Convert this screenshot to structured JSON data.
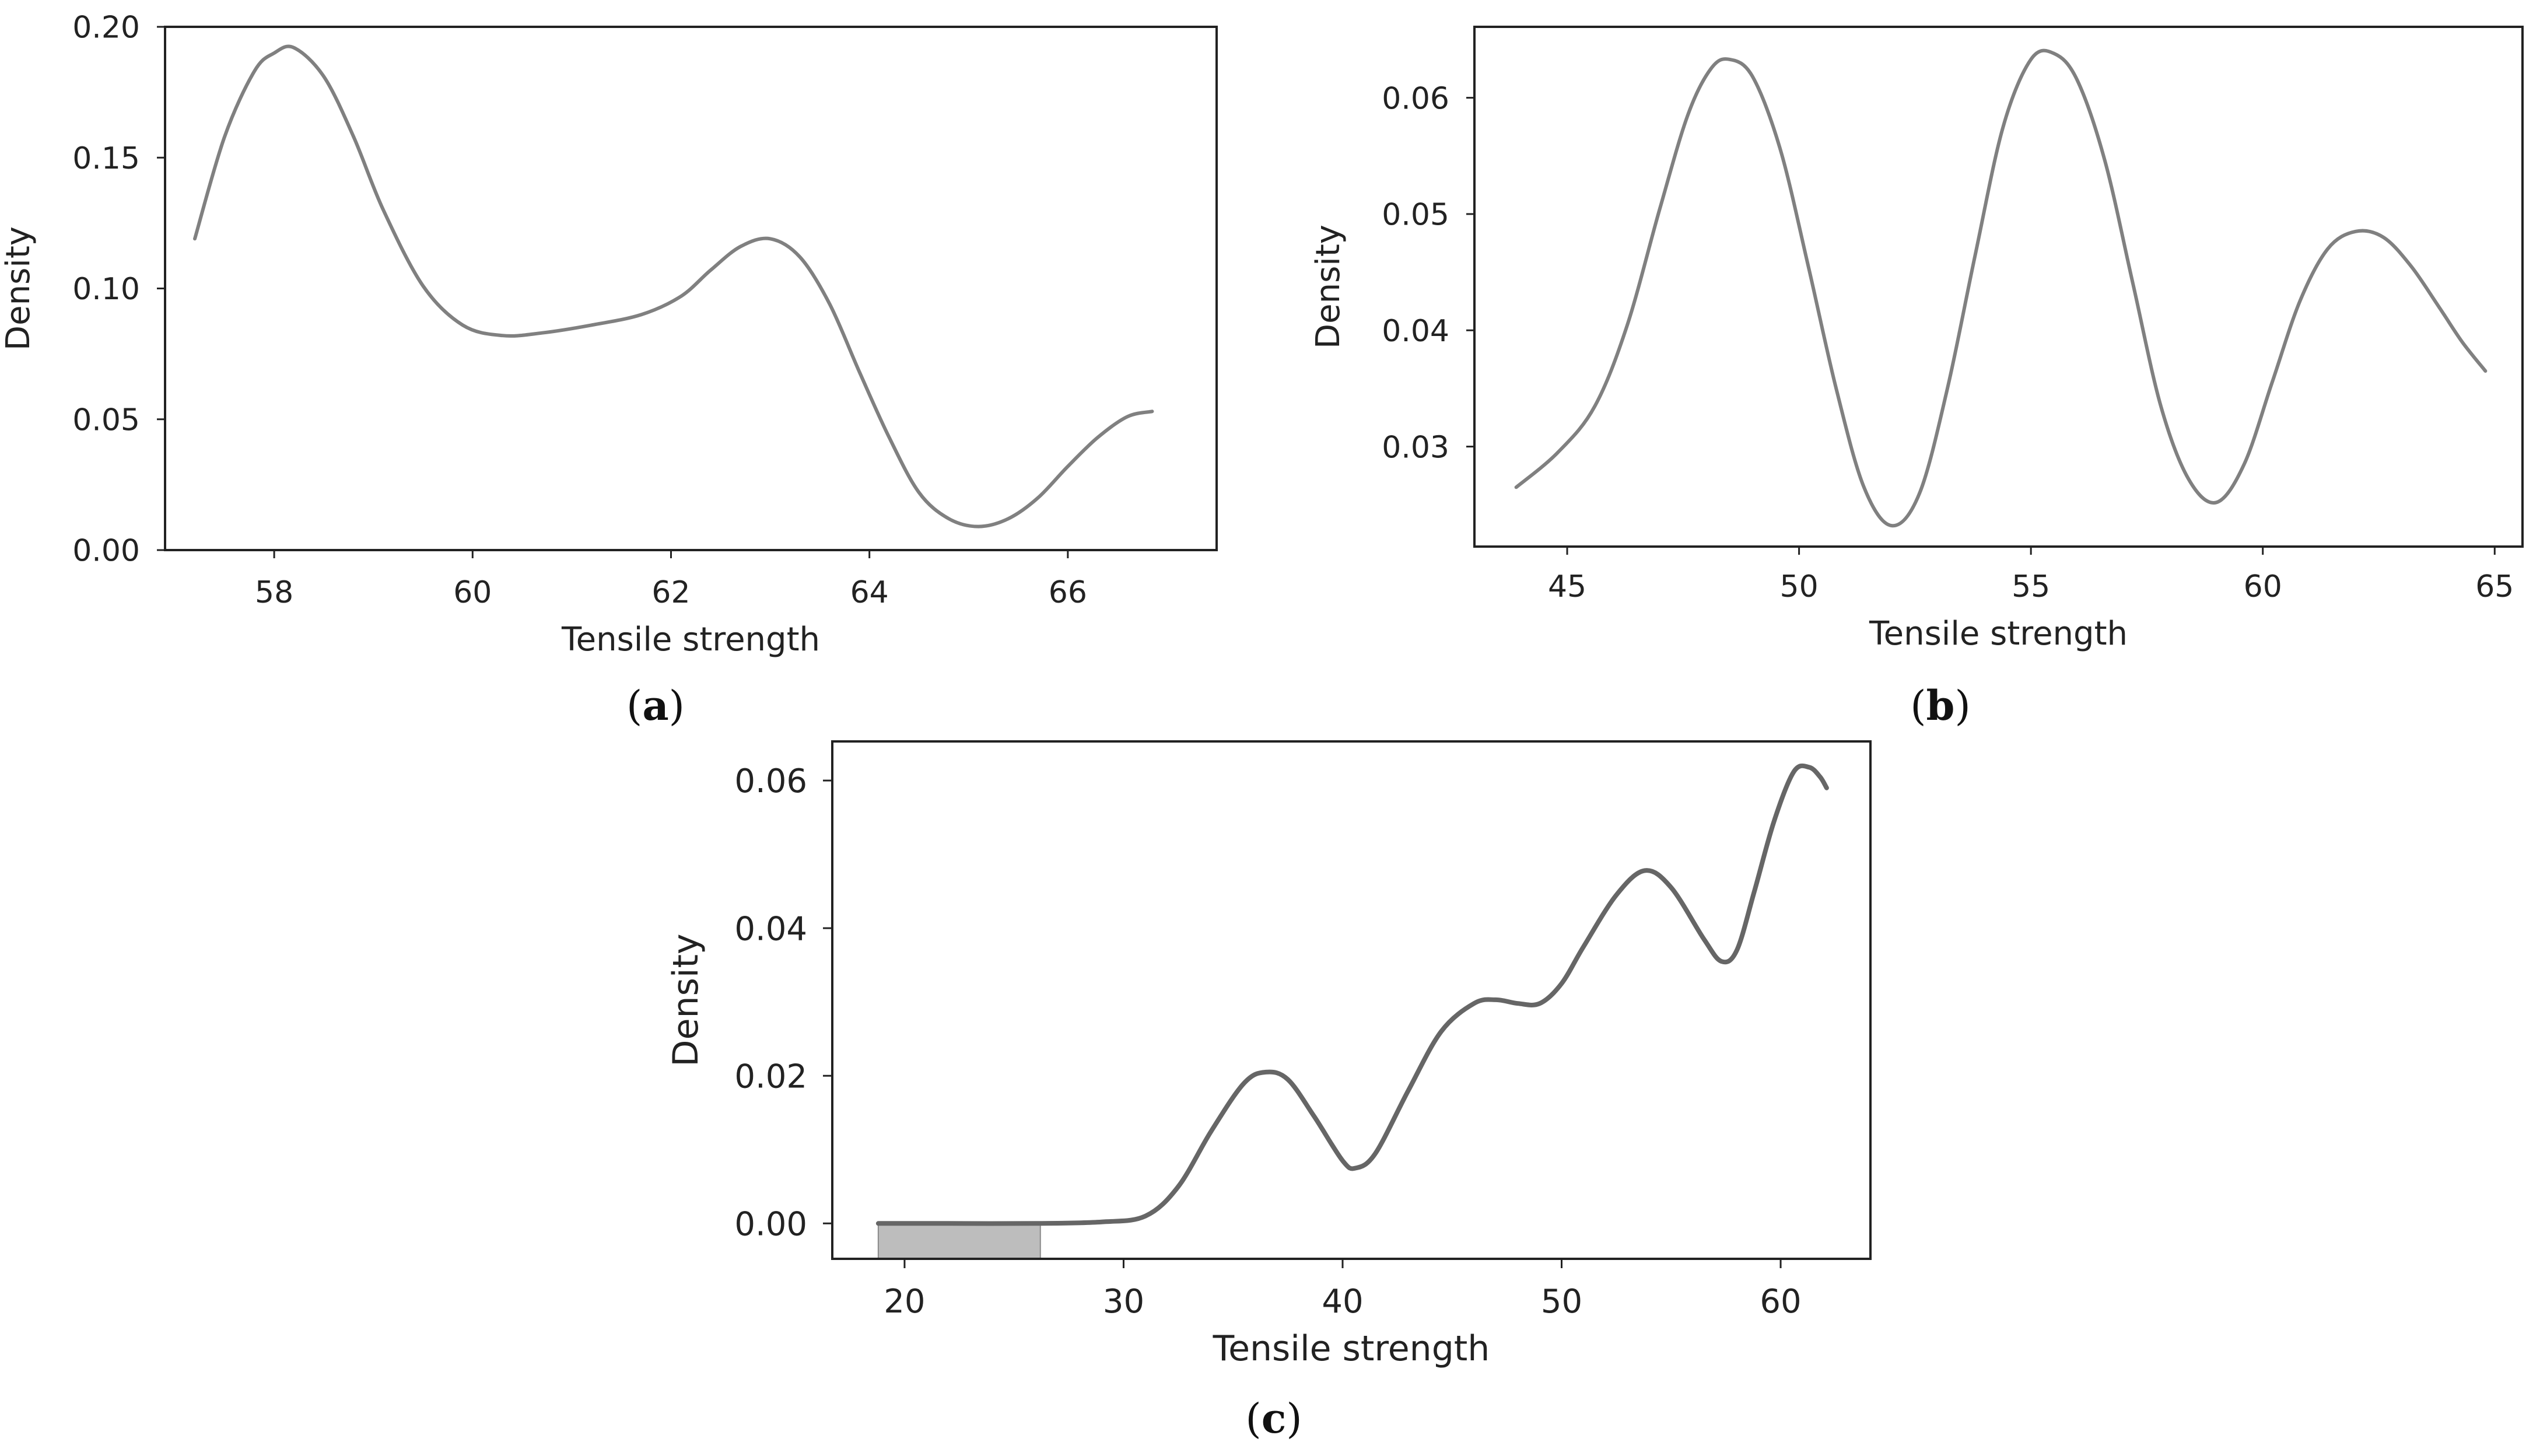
{
  "figure": {
    "captions": {
      "a": {
        "open": "(",
        "letter": "a",
        "close": ")"
      },
      "b": {
        "open": "(",
        "letter": "b",
        "close": ")"
      },
      "c": {
        "open": "(",
        "letter": "c",
        "close": ")"
      }
    }
  },
  "chart_data": [
    {
      "id": "a",
      "type": "line",
      "title": "",
      "xlabel": "Tensile strength",
      "ylabel": "Density",
      "xlim": [
        56.9,
        67.5
      ],
      "ylim": [
        0.0,
        0.2
      ],
      "xticks": [
        58,
        60,
        62,
        64,
        66
      ],
      "xtick_labels": [
        "58",
        "60",
        "62",
        "64",
        "66"
      ],
      "yticks": [
        0.0,
        0.05,
        0.1,
        0.15,
        0.2
      ],
      "ytick_labels": [
        "0.00",
        "0.05",
        "0.10",
        "0.15",
        "0.20"
      ],
      "grid": false,
      "line_color": "#808080",
      "series": [
        {
          "name": "density",
          "x": [
            57.2,
            57.5,
            57.8,
            58.0,
            58.2,
            58.5,
            58.8,
            59.1,
            59.5,
            59.9,
            60.3,
            60.7,
            61.2,
            61.7,
            62.1,
            62.4,
            62.7,
            63.0,
            63.3,
            63.6,
            63.9,
            64.2,
            64.5,
            64.8,
            65.1,
            65.4,
            65.7,
            66.0,
            66.3,
            66.6,
            66.85
          ],
          "y": [
            0.119,
            0.158,
            0.183,
            0.19,
            0.192,
            0.181,
            0.158,
            0.13,
            0.101,
            0.086,
            0.082,
            0.083,
            0.086,
            0.09,
            0.097,
            0.107,
            0.116,
            0.119,
            0.112,
            0.094,
            0.068,
            0.043,
            0.022,
            0.012,
            0.009,
            0.012,
            0.02,
            0.032,
            0.043,
            0.051,
            0.053
          ]
        }
      ]
    },
    {
      "id": "b",
      "type": "line",
      "title": "",
      "xlabel": "Tensile strength",
      "ylabel": "Density",
      "xlim": [
        43.0,
        65.6
      ],
      "ylim": [
        0.0214,
        0.0661
      ],
      "xticks": [
        45,
        50,
        55,
        60,
        65
      ],
      "xtick_labels": [
        "45",
        "50",
        "55",
        "60",
        "65"
      ],
      "yticks": [
        0.03,
        0.04,
        0.05,
        0.06
      ],
      "ytick_labels": [
        "0.03",
        "0.04",
        "0.05",
        "0.06"
      ],
      "grid": false,
      "line_color": "#808080",
      "series": [
        {
          "name": "density",
          "x": [
            43.9,
            44.8,
            45.6,
            46.3,
            47.0,
            47.6,
            48.1,
            48.5,
            49.0,
            49.6,
            50.2,
            50.8,
            51.4,
            52.0,
            52.6,
            53.2,
            53.8,
            54.4,
            55.0,
            55.5,
            56.0,
            56.6,
            57.2,
            57.8,
            58.4,
            59.0,
            59.6,
            60.2,
            60.8,
            61.4,
            62.0,
            62.6,
            63.2,
            63.8,
            64.3,
            64.8
          ],
          "y": [
            0.0265,
            0.0295,
            0.0335,
            0.0405,
            0.0505,
            0.0585,
            0.0625,
            0.0633,
            0.0618,
            0.0555,
            0.0455,
            0.035,
            0.0265,
            0.0232,
            0.026,
            0.035,
            0.0465,
            0.0575,
            0.0633,
            0.0638,
            0.0615,
            0.0545,
            0.044,
            0.0335,
            0.0272,
            0.0252,
            0.0285,
            0.0355,
            0.0425,
            0.047,
            0.0485,
            0.048,
            0.0455,
            0.042,
            0.039,
            0.0365
          ]
        }
      ]
    },
    {
      "id": "c",
      "type": "line",
      "title": "",
      "xlabel": "Tensile strength",
      "ylabel": "Density",
      "xlim": [
        16.7,
        64.1
      ],
      "ylim": [
        -0.0048,
        0.0653
      ],
      "xticks": [
        20,
        30,
        40,
        50,
        60
      ],
      "xtick_labels": [
        "20",
        "30",
        "40",
        "50",
        "60"
      ],
      "yticks": [
        0.0,
        0.02,
        0.04,
        0.06
      ],
      "ytick_labels": [
        "0.00",
        "0.02",
        "0.04",
        "0.06"
      ],
      "grid": false,
      "line_color": "#666666",
      "shaded_region": {
        "x_start": 18.8,
        "x_end": 26.2,
        "color": "#bdbdbd"
      },
      "series": [
        {
          "name": "density",
          "x": [
            18.8,
            22.0,
            26.0,
            29.0,
            31.0,
            32.5,
            34.0,
            35.5,
            36.5,
            37.5,
            38.7,
            40.0,
            40.6,
            41.5,
            43.0,
            44.5,
            46.0,
            47.0,
            48.0,
            49.0,
            50.0,
            51.0,
            52.5,
            53.8,
            55.0,
            56.5,
            57.3,
            58.0,
            58.8,
            59.7,
            60.6,
            61.3,
            61.8,
            62.1
          ],
          "y": [
            0.0,
            0.0,
            0.0,
            0.0002,
            0.001,
            0.005,
            0.0125,
            0.019,
            0.0205,
            0.0195,
            0.0145,
            0.0085,
            0.0075,
            0.0095,
            0.018,
            0.026,
            0.0298,
            0.0303,
            0.0298,
            0.0298,
            0.0325,
            0.0375,
            0.0445,
            0.0478,
            0.0455,
            0.0385,
            0.0355,
            0.037,
            0.045,
            0.0545,
            0.0612,
            0.0618,
            0.0605,
            0.059
          ]
        }
      ]
    }
  ]
}
